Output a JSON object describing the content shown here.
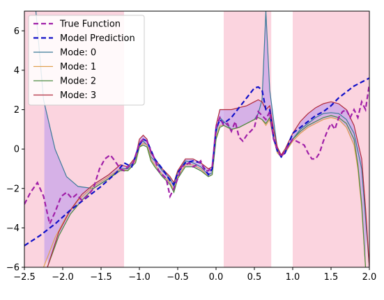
{
  "chart_data": {
    "type": "line",
    "xlim": [
      -2.5,
      2.0
    ],
    "ylim": [
      -6,
      7
    ],
    "xticks": [
      -2.5,
      -2.0,
      -1.5,
      -1.0,
      -0.5,
      0.0,
      0.5,
      1.0,
      1.5,
      2.0
    ],
    "xtick_labels": [
      "−2.5",
      "−2.0",
      "−1.5",
      "−1.0",
      "−0.5",
      "0.0",
      "0.5",
      "1.0",
      "1.5",
      "2.0"
    ],
    "yticks": [
      -6,
      -4,
      -2,
      0,
      2,
      4,
      6
    ],
    "ytick_labels": [
      "−6",
      "−4",
      "−2",
      "0",
      "2",
      "4",
      "6"
    ],
    "grid": false,
    "legend_position": "top-left",
    "colors": {
      "true_function": "#a01fa8",
      "model_prediction": "#1010c8",
      "mode0": "#3a7a96",
      "mode1": "#e0a050",
      "mode2": "#4a8a40",
      "mode3": "#b02838",
      "shade_pink": "#fbd4df",
      "shade_purple": "#c9a6ea"
    },
    "shaded_regions": [
      {
        "x0": -2.5,
        "x1": -1.2
      },
      {
        "x0": 0.1,
        "x1": 0.72
      },
      {
        "x0": 1.0,
        "x1": 2.0
      }
    ],
    "legend": [
      {
        "label": "True Function",
        "style": "dashed",
        "color": "#a01fa8"
      },
      {
        "label": "Model Prediction",
        "style": "dashed",
        "color": "#1010c8"
      },
      {
        "label": "Mode: 0",
        "style": "solid",
        "color": "#3a7a96"
      },
      {
        "label": "Mode: 1",
        "style": "solid",
        "color": "#e0a050"
      },
      {
        "label": "Mode: 2",
        "style": "solid",
        "color": "#4a8a40"
      },
      {
        "label": "Mode: 3",
        "style": "solid",
        "color": "#b02838"
      }
    ],
    "series": [
      {
        "name": "True Function",
        "x": [
          -2.5,
          -2.42,
          -2.33,
          -2.25,
          -2.17,
          -2.1,
          -2.02,
          -1.95,
          -1.88,
          -1.82,
          -1.75,
          -1.68,
          -1.6,
          -1.52,
          -1.45,
          -1.38,
          -1.32,
          -1.25,
          -1.2,
          -1.15,
          -1.08,
          -1.0,
          -0.95,
          -0.9,
          -0.85,
          -0.8,
          -0.75,
          -0.7,
          -0.65,
          -0.6,
          -0.55,
          -0.5,
          -0.45,
          -0.4,
          -0.35,
          -0.3,
          -0.25,
          -0.2,
          -0.15,
          -0.1,
          -0.05,
          0.0,
          0.05,
          0.1,
          0.15,
          0.2,
          0.25,
          0.3,
          0.35,
          0.4,
          0.45,
          0.5,
          0.55,
          0.6,
          0.65,
          0.7,
          0.75,
          0.8,
          0.85,
          0.9,
          0.95,
          1.0,
          1.05,
          1.1,
          1.15,
          1.2,
          1.25,
          1.3,
          1.35,
          1.4,
          1.45,
          1.5,
          1.55,
          1.6,
          1.65,
          1.7,
          1.75,
          1.8,
          1.85,
          1.9,
          1.95,
          2.0
        ],
        "y": [
          -2.8,
          -2.2,
          -1.7,
          -2.4,
          -3.8,
          -3.2,
          -2.4,
          -2.2,
          -2.5,
          -2.3,
          -2.6,
          -2.4,
          -2.0,
          -1.0,
          -0.5,
          -0.3,
          -0.6,
          -1.0,
          -1.1,
          -0.9,
          -0.7,
          0.3,
          0.5,
          0.4,
          -0.1,
          -0.5,
          -1.1,
          -1.3,
          -1.5,
          -2.4,
          -2.0,
          -1.5,
          -0.9,
          -0.8,
          -0.7,
          -0.9,
          -0.8,
          -0.6,
          -1.1,
          -1.1,
          -0.9,
          1.1,
          1.6,
          1.2,
          1.3,
          0.9,
          1.4,
          0.6,
          0.4,
          0.7,
          0.9,
          1.1,
          1.9,
          1.7,
          1.5,
          1.9,
          0.5,
          0.0,
          -0.4,
          -0.1,
          0.2,
          0.5,
          0.4,
          0.3,
          0.2,
          -0.2,
          -0.5,
          -0.5,
          -0.2,
          0.4,
          0.9,
          1.3,
          1.0,
          1.6,
          1.9,
          2.0,
          1.6,
          2.0,
          1.6,
          2.4,
          2.0,
          3.3
        ]
      },
      {
        "name": "Model Prediction",
        "x": [
          -2.5,
          -2.3,
          -2.1,
          -1.9,
          -1.7,
          -1.5,
          -1.3,
          -1.2,
          -1.1,
          -1.0,
          -0.95,
          -0.9,
          -0.8,
          -0.7,
          -0.6,
          -0.55,
          -0.5,
          -0.4,
          -0.3,
          -0.2,
          -0.1,
          -0.05,
          0.0,
          0.05,
          0.1,
          0.2,
          0.3,
          0.4,
          0.5,
          0.55,
          0.6,
          0.65,
          0.7,
          0.75,
          0.8,
          0.85,
          0.9,
          1.0,
          1.1,
          1.2,
          1.3,
          1.4,
          1.5,
          1.6,
          1.7,
          1.8,
          1.9,
          2.0
        ],
        "y": [
          -4.9,
          -4.4,
          -3.8,
          -3.1,
          -2.5,
          -1.9,
          -1.2,
          -0.7,
          -0.9,
          0.2,
          0.5,
          0.4,
          -0.5,
          -1.0,
          -1.6,
          -1.8,
          -1.2,
          -0.7,
          -0.6,
          -0.7,
          -1.3,
          -1.0,
          1.0,
          1.5,
          1.3,
          1.6,
          2.1,
          2.6,
          3.1,
          3.15,
          3.0,
          2.0,
          2.0,
          0.6,
          -0.1,
          -0.4,
          -0.2,
          0.8,
          1.1,
          1.4,
          1.7,
          1.9,
          2.2,
          2.6,
          2.9,
          3.2,
          3.4,
          3.6
        ]
      },
      {
        "name": "Mode: 0",
        "x": [
          -2.35,
          -2.25,
          -2.1,
          -1.95,
          -1.8,
          -1.6,
          -1.4,
          -1.25,
          -1.15,
          -1.05,
          -1.0,
          -0.95,
          -0.9,
          -0.85,
          -0.8,
          -0.7,
          -0.6,
          -0.55,
          -0.5,
          -0.4,
          -0.3,
          -0.2,
          -0.1,
          -0.05,
          0.0,
          0.05,
          0.1,
          0.15,
          0.2,
          0.3,
          0.4,
          0.5,
          0.55,
          0.6,
          0.65,
          0.7,
          0.75,
          0.8,
          0.85,
          0.9,
          1.0,
          1.1,
          1.2,
          1.3,
          1.4,
          1.5,
          1.6,
          1.7,
          1.8,
          1.9,
          1.95,
          2.0
        ],
        "y": [
          7.0,
          2.5,
          0.0,
          -1.4,
          -1.9,
          -2.0,
          -1.5,
          -1.0,
          -1.0,
          -0.5,
          0.3,
          0.4,
          0.2,
          -0.4,
          -0.6,
          -1.1,
          -1.5,
          -1.9,
          -1.2,
          -0.6,
          -0.7,
          -0.9,
          -1.3,
          -1.2,
          0.8,
          1.6,
          1.4,
          1.2,
          1.0,
          1.1,
          1.3,
          1.5,
          1.8,
          2.5,
          7.0,
          3.0,
          1.5,
          0.0,
          -0.3,
          -0.2,
          0.5,
          1.0,
          1.3,
          1.6,
          1.8,
          1.85,
          1.8,
          1.5,
          0.8,
          -1.0,
          -3.5,
          -6.0
        ]
      },
      {
        "name": "Mode: 1",
        "x": [
          -2.25,
          -2.1,
          -1.95,
          -1.8,
          -1.6,
          -1.4,
          -1.25,
          -1.15,
          -1.05,
          -1.0,
          -0.95,
          -0.9,
          -0.85,
          -0.8,
          -0.7,
          -0.6,
          -0.55,
          -0.5,
          -0.4,
          -0.3,
          -0.2,
          -0.1,
          -0.05,
          0.0,
          0.05,
          0.1,
          0.2,
          0.3,
          0.4,
          0.5,
          0.55,
          0.6,
          0.65,
          0.7,
          0.75,
          0.8,
          0.85,
          0.9,
          1.0,
          1.1,
          1.2,
          1.3,
          1.4,
          1.5,
          1.6,
          1.7,
          1.8,
          1.85,
          1.9,
          1.95
        ],
        "y": [
          -6.0,
          -4.5,
          -3.4,
          -2.6,
          -1.9,
          -1.4,
          -1.0,
          -1.1,
          -0.6,
          0.1,
          0.3,
          0.2,
          -0.5,
          -0.8,
          -1.3,
          -1.7,
          -2.1,
          -1.4,
          -0.8,
          -0.8,
          -1.0,
          -1.4,
          -1.3,
          0.6,
          1.2,
          1.2,
          1.0,
          1.1,
          1.3,
          1.5,
          1.6,
          1.5,
          1.2,
          1.5,
          0.5,
          -0.2,
          -0.4,
          -0.2,
          0.4,
          0.8,
          1.1,
          1.3,
          1.5,
          1.6,
          1.5,
          1.1,
          0.2,
          -1.0,
          -3.0,
          -6.0
        ]
      },
      {
        "name": "Mode: 2",
        "x": [
          -2.2,
          -2.05,
          -1.9,
          -1.75,
          -1.6,
          -1.4,
          -1.25,
          -1.15,
          -1.05,
          -1.0,
          -0.95,
          -0.9,
          -0.85,
          -0.8,
          -0.7,
          -0.6,
          -0.55,
          -0.5,
          -0.4,
          -0.3,
          -0.2,
          -0.1,
          -0.05,
          0.0,
          0.05,
          0.1,
          0.2,
          0.3,
          0.4,
          0.5,
          0.55,
          0.6,
          0.65,
          0.7,
          0.75,
          0.8,
          0.85,
          0.9,
          1.0,
          1.1,
          1.2,
          1.3,
          1.4,
          1.5,
          1.6,
          1.7,
          1.8,
          1.85,
          1.9,
          1.95
        ],
        "y": [
          -6.0,
          -4.4,
          -3.3,
          -2.6,
          -2.0,
          -1.5,
          -1.1,
          -1.1,
          -0.7,
          0.1,
          0.2,
          0.1,
          -0.6,
          -0.9,
          -1.4,
          -1.8,
          -2.2,
          -1.5,
          -0.9,
          -0.9,
          -1.1,
          -1.4,
          -1.3,
          0.5,
          1.1,
          1.2,
          1.0,
          1.1,
          1.3,
          1.5,
          1.6,
          1.5,
          1.3,
          1.6,
          0.6,
          -0.1,
          -0.4,
          -0.1,
          0.5,
          0.9,
          1.2,
          1.4,
          1.6,
          1.7,
          1.6,
          1.3,
          0.5,
          -0.8,
          -2.8,
          -6.0
        ]
      },
      {
        "name": "Mode: 3",
        "x": [
          -2.2,
          -2.05,
          -1.9,
          -1.75,
          -1.6,
          -1.4,
          -1.25,
          -1.15,
          -1.05,
          -1.0,
          -0.95,
          -0.9,
          -0.85,
          -0.8,
          -0.7,
          -0.6,
          -0.55,
          -0.5,
          -0.4,
          -0.3,
          -0.2,
          -0.1,
          -0.05,
          0.0,
          0.05,
          0.1,
          0.2,
          0.3,
          0.4,
          0.5,
          0.55,
          0.6,
          0.65,
          0.7,
          0.75,
          0.8,
          0.85,
          0.9,
          1.0,
          1.1,
          1.2,
          1.3,
          1.4,
          1.5,
          1.6,
          1.7,
          1.8,
          1.9,
          1.95,
          2.0
        ],
        "y": [
          -6.0,
          -4.2,
          -3.1,
          -2.3,
          -1.8,
          -1.3,
          -0.8,
          -0.9,
          -0.4,
          0.5,
          0.7,
          0.5,
          -0.2,
          -0.5,
          -1.0,
          -1.4,
          -1.7,
          -1.1,
          -0.5,
          -0.5,
          -0.7,
          -1.0,
          -0.9,
          1.2,
          2.0,
          2.0,
          2.0,
          2.1,
          2.2,
          2.4,
          2.5,
          2.4,
          2.0,
          2.2,
          1.0,
          0.1,
          -0.3,
          0.0,
          0.8,
          1.4,
          1.8,
          2.1,
          2.3,
          2.4,
          2.3,
          2.0,
          1.2,
          -0.5,
          -3.0,
          -6.0
        ]
      }
    ]
  }
}
